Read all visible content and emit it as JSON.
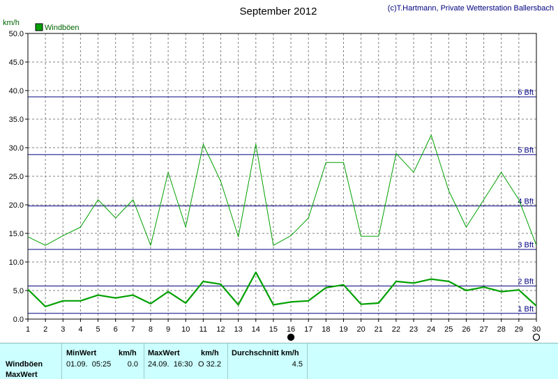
{
  "header": {
    "title": "September 2012",
    "credit": "(c)T.Hartmann, Private Wetterstation Ballersbach",
    "unit": "km/h"
  },
  "colors": {
    "series_upper": "#00a000",
    "series_lower": "#00a000",
    "beaufort_line": "#000080",
    "grid": "#808080",
    "stats_bg": "#ccffff"
  },
  "chart_data": {
    "type": "line",
    "ylabel": "km/h",
    "ylim": [
      0,
      50
    ],
    "yticks": [
      "0.0",
      "5.0",
      "10.0",
      "15.0",
      "20.0",
      "25.0",
      "30.0",
      "35.0",
      "40.0",
      "45.0",
      "50.0"
    ],
    "xlim": [
      1,
      30
    ],
    "x": [
      1,
      2,
      3,
      4,
      5,
      6,
      7,
      8,
      9,
      10,
      11,
      12,
      13,
      14,
      15,
      16,
      17,
      18,
      19,
      20,
      21,
      22,
      23,
      24,
      25,
      26,
      27,
      28,
      29,
      30
    ],
    "legend": {
      "label": "Windböen",
      "placement": "top-left"
    },
    "series": [
      {
        "name": "Windböen",
        "values": [
          14.4,
          12.9,
          14.6,
          16.1,
          20.9,
          17.7,
          20.9,
          12.9,
          25.7,
          16.1,
          30.6,
          24.1,
          14.4,
          30.6,
          12.9,
          14.6,
          17.7,
          27.4,
          27.4,
          14.5,
          14.5,
          29.0,
          25.7,
          32.2,
          22.5,
          16.1,
          20.9,
          25.7,
          20.9,
          12.9
        ]
      },
      {
        "values": [
          5.2,
          2.2,
          3.2,
          3.2,
          4.2,
          3.7,
          4.2,
          2.7,
          4.8,
          2.8,
          6.6,
          6.1,
          2.5,
          8.2,
          2.5,
          3.0,
          3.2,
          5.5,
          6.0,
          2.6,
          2.8,
          6.6,
          6.3,
          7.0,
          6.6,
          5.0,
          5.6,
          4.8,
          5.1,
          2.3
        ]
      }
    ],
    "reference_lines": [
      {
        "label": "1 Bft",
        "value": 1
      },
      {
        "label": "2 Bft",
        "value": 5.8
      },
      {
        "label": "3 Bft",
        "value": 12.2
      },
      {
        "label": "4 Bft",
        "value": 19.8
      },
      {
        "label": "5 Bft",
        "value": 28.8
      },
      {
        "label": "6 Bft",
        "value": 38.9
      }
    ],
    "markers": [
      {
        "x": 16,
        "style": "filled"
      },
      {
        "x": 30,
        "style": "hollow"
      }
    ],
    "grid": true
  },
  "stats": {
    "row_labels": [
      "Windböen",
      "MaxWert"
    ],
    "min_header": "MinWert",
    "min_unit": "km/h",
    "min_date": "01.09.  05:25",
    "min_value": "0.0",
    "max_header": "MaxWert",
    "max_unit": "km/h",
    "max_date": "24.09.  16:30",
    "max_value": "O 32.2",
    "avg_header": "Durchschnitt km/h",
    "avg_value": "4.5"
  }
}
